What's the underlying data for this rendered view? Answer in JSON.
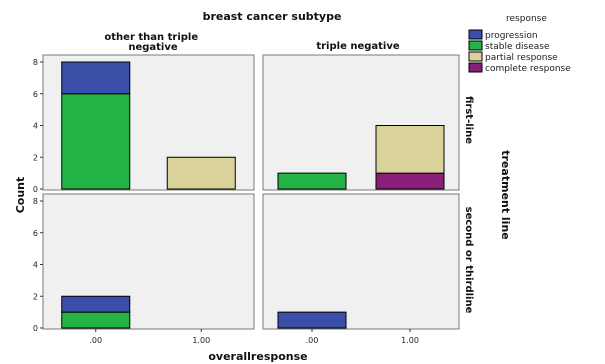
{
  "chart_data": {
    "type": "bar",
    "stacked": true,
    "title": "breast cancer subtype",
    "xlabel": "overallresponse",
    "ylabel": "Count",
    "row_facet_label": "treatment line",
    "column_facets": [
      "other than triple negative",
      "triple negative"
    ],
    "row_facets": [
      "first-line",
      "second or thirdline"
    ],
    "categories": [
      ".00",
      "1.00"
    ],
    "ylim": [
      0,
      8
    ],
    "yticks": [
      0,
      2,
      4,
      6,
      8
    ],
    "grid": false,
    "legend": {
      "title": "response",
      "placement": "top-right",
      "entries": [
        {
          "name": "progression",
          "color": "#3a4fa8"
        },
        {
          "name": "stable disease",
          "color": "#23b445"
        },
        {
          "name": "partial response",
          "color": "#d9d29a"
        },
        {
          "name": "complete response",
          "color": "#8a1f7a"
        }
      ]
    },
    "panels": [
      {
        "column": "other than triple negative",
        "row": "first-line",
        "bars": [
          {
            "category": ".00",
            "segments": [
              {
                "series": "stable disease",
                "value": 6
              },
              {
                "series": "progression",
                "value": 2
              }
            ]
          },
          {
            "category": "1.00",
            "segments": [
              {
                "series": "partial response",
                "value": 2
              }
            ]
          }
        ]
      },
      {
        "column": "triple negative",
        "row": "first-line",
        "bars": [
          {
            "category": ".00",
            "segments": [
              {
                "series": "stable disease",
                "value": 1
              }
            ]
          },
          {
            "category": "1.00",
            "segments": [
              {
                "series": "complete response",
                "value": 1
              },
              {
                "series": "partial response",
                "value": 3
              }
            ]
          }
        ]
      },
      {
        "column": "other than triple negative",
        "row": "second or thirdline",
        "bars": [
          {
            "category": ".00",
            "segments": [
              {
                "series": "stable disease",
                "value": 1
              },
              {
                "series": "progression",
                "value": 1
              }
            ]
          },
          {
            "category": "1.00",
            "segments": []
          }
        ]
      },
      {
        "column": "triple negative",
        "row": "second or thirdline",
        "bars": [
          {
            "category": ".00",
            "segments": [
              {
                "series": "progression",
                "value": 1
              }
            ]
          },
          {
            "category": "1.00",
            "segments": []
          }
        ]
      }
    ]
  }
}
